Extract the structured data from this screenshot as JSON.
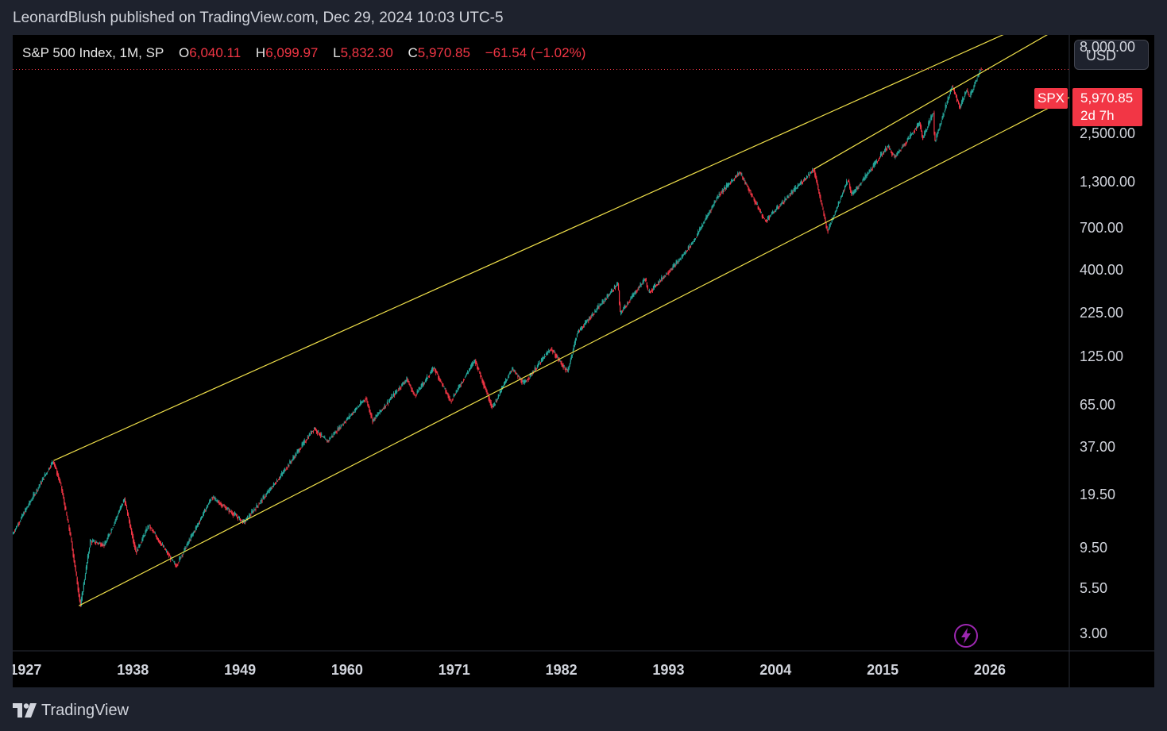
{
  "header": {
    "publish_line": "LeonardBlush published on TradingView.com, Dec 29, 2024 10:03 UTC-5"
  },
  "legend": {
    "symbol": "S&P 500 Index, 1M, SP",
    "open_label": "O",
    "open": "6,040.11",
    "high_label": "H",
    "high": "6,099.97",
    "low_label": "L",
    "low": "5,832.30",
    "close_label": "C",
    "close": "5,970.85",
    "change": "−61.54 (−1.02%)"
  },
  "currency": "USD",
  "price_marker": {
    "symbol": "SPX",
    "price": "5,970.85",
    "countdown": "2d 7h"
  },
  "colors": {
    "up": "#26a69a",
    "down": "#f23645",
    "trendline": "#f0e04a",
    "price_line": "#f23645",
    "background": "#000000",
    "replay": "#9c27b0"
  },
  "icons": {
    "replay": "lightning-icon",
    "logo": "tradingview-logo-icon"
  },
  "footer": {
    "brand": "TradingView"
  },
  "chart_data": {
    "type": "candlestick",
    "title": "S&P 500 Index, 1M, SP",
    "scale": "log",
    "ylim": [
      2.4,
      9500
    ],
    "xlim": [
      1925.5,
      2034
    ],
    "grid": false,
    "y_tick_labels": [
      "8,000.00",
      "2,500.00",
      "1,300.00",
      "700.00",
      "400.00",
      "225.00",
      "125.00",
      "65.00",
      "37.00",
      "19.50",
      "9.50",
      "5.50",
      "3.00"
    ],
    "y_ticks": [
      8000,
      2500,
      1300,
      700,
      400,
      225,
      125,
      65,
      37,
      19.5,
      9.5,
      5.5,
      3.0
    ],
    "x_tick_labels": [
      "1927",
      "1938",
      "1949",
      "1960",
      "1971",
      "1982",
      "1993",
      "2004",
      "2015",
      "2026"
    ],
    "x_ticks": [
      1927,
      1938,
      1949,
      1960,
      1971,
      1982,
      1993,
      2004,
      2015,
      2026
    ],
    "last_close": 5970.85,
    "price_path": [
      [
        1925.5,
        11.5
      ],
      [
        1927.0,
        16.5
      ],
      [
        1929.7,
        31.0
      ],
      [
        1930.5,
        22.0
      ],
      [
        1931.5,
        11.0
      ],
      [
        1932.5,
        4.4
      ],
      [
        1933.5,
        10.5
      ],
      [
        1935.0,
        10.0
      ],
      [
        1937.0,
        18.5
      ],
      [
        1938.2,
        9.0
      ],
      [
        1939.5,
        13.0
      ],
      [
        1942.3,
        7.5
      ],
      [
        1946.0,
        19.0
      ],
      [
        1949.3,
        13.5
      ],
      [
        1953.0,
        25.0
      ],
      [
        1956.5,
        48.0
      ],
      [
        1957.8,
        40.0
      ],
      [
        1961.8,
        72.0
      ],
      [
        1962.5,
        53.0
      ],
      [
        1966.0,
        93.0
      ],
      [
        1966.8,
        74.0
      ],
      [
        1968.8,
        108.0
      ],
      [
        1970.5,
        69.0
      ],
      [
        1973.0,
        120.0
      ],
      [
        1974.8,
        63.0
      ],
      [
        1976.8,
        107.0
      ],
      [
        1978.0,
        87.0
      ],
      [
        1980.8,
        140.0
      ],
      [
        1982.5,
        102.0
      ],
      [
        1983.5,
        172.0
      ],
      [
        1987.7,
        336.0
      ],
      [
        1987.9,
        224.0
      ],
      [
        1990.5,
        360.0
      ],
      [
        1990.8,
        295.0
      ],
      [
        1994.0,
        460.0
      ],
      [
        1995.5,
        600.0
      ],
      [
        1998.0,
        1100.0
      ],
      [
        2000.2,
        1500.0
      ],
      [
        2002.8,
        776.0
      ],
      [
        2007.8,
        1565.0
      ],
      [
        2009.2,
        676.0
      ],
      [
        2011.3,
        1363.0
      ],
      [
        2011.7,
        1100.0
      ],
      [
        2015.4,
        2130.0
      ],
      [
        2016.1,
        1829.0
      ],
      [
        2018.7,
        2930.0
      ],
      [
        2018.95,
        2350.0
      ],
      [
        2020.1,
        3380.0
      ],
      [
        2020.2,
        2240.0
      ],
      [
        2022.0,
        4800.0
      ],
      [
        2022.8,
        3580.0
      ],
      [
        2023.5,
        4550.0
      ],
      [
        2023.8,
        4100.0
      ],
      [
        2024.95,
        6090.0
      ],
      [
        2024.99,
        5970.85
      ]
    ],
    "trendlines": [
      {
        "from": [
          1929.7,
          31.0
        ],
        "to": [
          2034.0,
          14200.0
        ]
      },
      {
        "from": [
          1932.3,
          4.4
        ],
        "to": [
          2034.0,
          4100.0
        ]
      },
      {
        "from": [
          2007.8,
          1565.0
        ],
        "to": [
          2034.0,
          11300.0
        ]
      }
    ]
  }
}
